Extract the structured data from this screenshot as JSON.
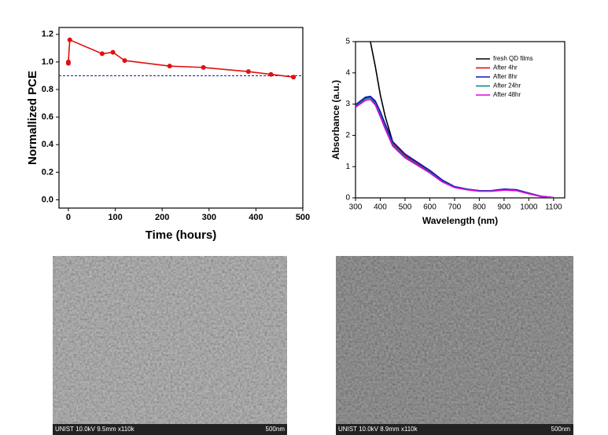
{
  "chart_data": [
    {
      "type": "line",
      "xlabel": "Time (hours)",
      "ylabel": "Normallized PCE",
      "x": [
        0,
        0,
        3,
        72,
        95,
        120,
        216,
        288,
        384,
        432,
        480
      ],
      "values": [
        0.99,
        1.0,
        1.16,
        1.06,
        1.07,
        1.01,
        0.97,
        0.96,
        0.93,
        0.91,
        0.89
      ],
      "color": "#e01010",
      "marker": "circle",
      "hline": {
        "value": 0.9,
        "color": "#1a1aa0"
      },
      "xlim": [
        -20,
        500
      ],
      "xticks": [
        0,
        100,
        200,
        300,
        400,
        500
      ],
      "ylim": [
        -0.06,
        1.25
      ],
      "yticks": [
        {
          "value": 0,
          "label": "0.0"
        },
        0.2,
        0.4,
        0.6,
        0.8,
        {
          "value": 1,
          "label": "1.0"
        },
        1.2
      ],
      "grid": false
    },
    {
      "type": "line",
      "xlabel": "Wavelength (nm)",
      "ylabel": "Absorbance (a.u.)",
      "x": [
        300,
        340,
        360,
        380,
        400,
        420,
        450,
        500,
        550,
        600,
        650,
        700,
        750,
        800,
        850,
        900,
        950,
        1000,
        1050,
        1100
      ],
      "series": [
        {
          "name": "fresh QD films",
          "color": "#000000",
          "values": [
            null,
            null,
            5.0,
            4.2,
            3.3,
            2.6,
            1.8,
            1.4,
            1.12,
            0.88,
            0.57,
            0.36,
            0.28,
            0.23,
            0.23,
            0.28,
            0.26,
            0.15,
            0.05,
            0.01
          ]
        },
        {
          "name": "After 4hr",
          "color": "#e00000",
          "values": [
            2.95,
            3.2,
            3.22,
            3.05,
            2.7,
            2.3,
            1.75,
            1.35,
            1.1,
            0.85,
            0.55,
            0.35,
            0.28,
            0.22,
            0.22,
            0.27,
            0.25,
            0.15,
            0.05,
            0.01
          ]
        },
        {
          "name": "After 8hr",
          "color": "#1010c0",
          "values": [
            2.98,
            3.22,
            3.25,
            3.1,
            2.76,
            2.36,
            1.8,
            1.4,
            1.14,
            0.88,
            0.57,
            0.36,
            0.28,
            0.23,
            0.23,
            0.28,
            0.26,
            0.15,
            0.05,
            0.01
          ]
        },
        {
          "name": "After 24hr",
          "color": "#008080",
          "values": [
            2.93,
            3.17,
            3.2,
            3.02,
            2.66,
            2.26,
            1.71,
            1.32,
            1.07,
            0.83,
            0.53,
            0.34,
            0.27,
            0.22,
            0.22,
            0.26,
            0.24,
            0.14,
            0.05,
            0.01
          ]
        },
        {
          "name": "After 48hr",
          "color": "#e000e0",
          "values": [
            2.9,
            3.12,
            3.15,
            2.97,
            2.6,
            2.2,
            1.66,
            1.28,
            1.04,
            0.8,
            0.51,
            0.33,
            0.26,
            0.21,
            0.21,
            0.25,
            0.23,
            0.13,
            0.04,
            0.01
          ]
        }
      ],
      "xlim": [
        300,
        1145
      ],
      "xticks": [
        300,
        400,
        500,
        600,
        700,
        800,
        900,
        1000,
        1100
      ],
      "ylim": [
        0,
        5
      ],
      "yticks": [
        0,
        1,
        2,
        3,
        4,
        5
      ],
      "grid": false,
      "legend": "upper right"
    }
  ],
  "images": [
    {
      "caption": "UNIST 10.0kV 9.5mm x110k",
      "scale": "500nm"
    },
    {
      "caption": "UNIST 10.0kV 8.9mm x110k",
      "scale": "500nm"
    }
  ]
}
